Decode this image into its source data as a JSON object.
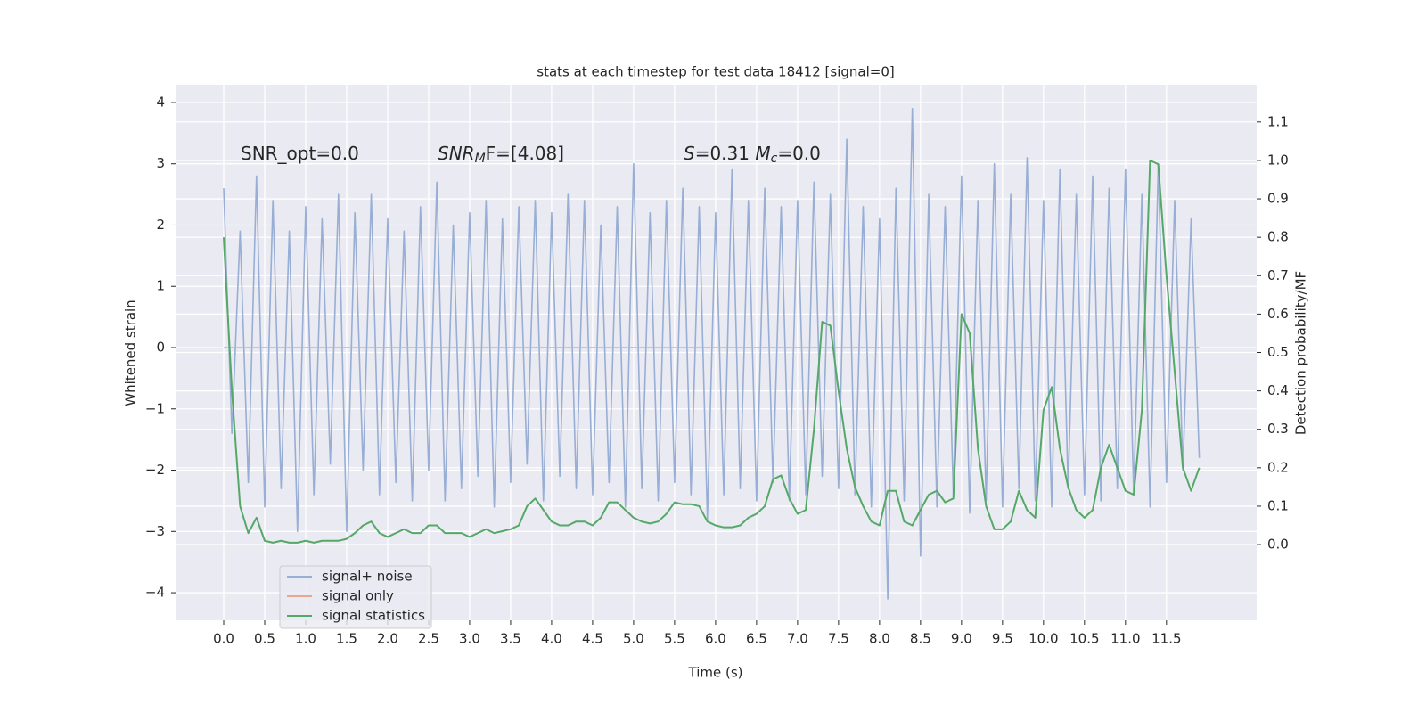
{
  "chart_data": {
    "type": "line",
    "title": "stats at each timestep for test data 18412 [signal=0]",
    "xlabel": "Time (s)",
    "ylabel": "Whitened strain",
    "y2label": "Detection probability/MF",
    "annotations": [
      [
        {
          "text": "SNR_opt=0.0"
        }
      ],
      [
        {
          "text": "SNR",
          "italic": true
        },
        {
          "text": "M",
          "italic": true,
          "sub": true
        },
        {
          "text": "F=[4.08]"
        }
      ],
      [
        {
          "text": "S",
          "italic": true
        },
        {
          "text": "=0.31   "
        },
        {
          "text": "M",
          "italic": true
        },
        {
          "text": "c",
          "italic": true,
          "sub": true
        },
        {
          "text": "=0.0"
        }
      ]
    ],
    "x": [
      0.0,
      0.1,
      0.2,
      0.3,
      0.4,
      0.5,
      0.6,
      0.7,
      0.8,
      0.9,
      1.0,
      1.1,
      1.2,
      1.3,
      1.4,
      1.5,
      1.6,
      1.7,
      1.8,
      1.9,
      2.0,
      2.1,
      2.2,
      2.3,
      2.4,
      2.5,
      2.6,
      2.7,
      2.8,
      2.9,
      3.0,
      3.1,
      3.2,
      3.3,
      3.4,
      3.5,
      3.6,
      3.7,
      3.8,
      3.9,
      4.0,
      4.1,
      4.2,
      4.3,
      4.4,
      4.5,
      4.6,
      4.7,
      4.8,
      4.9,
      5.0,
      5.1,
      5.2,
      5.3,
      5.4,
      5.5,
      5.6,
      5.7,
      5.8,
      5.9,
      6.0,
      6.1,
      6.2,
      6.3,
      6.4,
      6.5,
      6.6,
      6.7,
      6.8,
      6.9,
      7.0,
      7.1,
      7.2,
      7.3,
      7.4,
      7.5,
      7.6,
      7.7,
      7.8,
      7.9,
      8.0,
      8.1,
      8.2,
      8.3,
      8.4,
      8.5,
      8.6,
      8.7,
      8.8,
      8.9,
      9.0,
      9.1,
      9.2,
      9.3,
      9.4,
      9.5,
      9.6,
      9.7,
      9.8,
      9.9,
      10.0,
      10.1,
      10.2,
      10.3,
      10.4,
      10.5,
      10.6,
      10.7,
      10.8,
      10.9,
      11.0,
      11.1,
      11.2,
      11.3,
      11.4,
      11.5,
      11.6,
      11.7,
      11.8,
      11.9
    ],
    "series": [
      {
        "name": "signal+ noise",
        "color": "#98aed4",
        "values": [
          2.6,
          -1.4,
          1.9,
          -2.2,
          2.8,
          -2.6,
          2.4,
          -2.3,
          1.9,
          -3.0,
          2.3,
          -2.4,
          2.1,
          -1.9,
          2.5,
          -3.0,
          2.2,
          -2.0,
          2.5,
          -2.4,
          2.1,
          -2.2,
          1.9,
          -2.5,
          2.3,
          -2.0,
          2.7,
          -2.5,
          2.0,
          -2.3,
          2.2,
          -2.1,
          2.4,
          -2.6,
          2.1,
          -2.2,
          2.3,
          -1.9,
          2.4,
          -2.5,
          2.2,
          -2.1,
          2.5,
          -2.3,
          2.4,
          -2.4,
          2.0,
          -2.2,
          2.3,
          -2.6,
          3.0,
          -2.3,
          2.2,
          -2.5,
          2.4,
          -2.2,
          2.6,
          -2.4,
          2.3,
          -2.8,
          2.2,
          -2.4,
          2.9,
          -2.3,
          2.4,
          -2.5,
          2.6,
          -2.2,
          2.3,
          -2.5,
          2.4,
          -2.4,
          2.7,
          -2.1,
          2.5,
          -2.3,
          3.4,
          -2.4,
          2.3,
          -2.6,
          2.1,
          -4.1,
          2.6,
          -2.5,
          3.9,
          -3.4,
          2.5,
          -2.6,
          2.3,
          -2.4,
          2.8,
          -2.7,
          2.4,
          -2.5,
          3.0,
          -2.6,
          2.5,
          -2.3,
          3.1,
          -2.5,
          2.4,
          -2.6,
          2.9,
          -2.3,
          2.5,
          -2.4,
          2.8,
          -2.5,
          2.6,
          -2.3,
          2.9,
          -2.4,
          2.5,
          -2.6,
          3.0,
          -2.2,
          2.4,
          -2.0,
          2.1,
          -1.8
        ]
      },
      {
        "name": "signal only",
        "color": "#e8a88c",
        "values": [
          0,
          0,
          0,
          0,
          0,
          0,
          0,
          0,
          0,
          0,
          0,
          0,
          0,
          0,
          0,
          0,
          0,
          0,
          0,
          0,
          0,
          0,
          0,
          0,
          0,
          0,
          0,
          0,
          0,
          0,
          0,
          0,
          0,
          0,
          0,
          0,
          0,
          0,
          0,
          0,
          0,
          0,
          0,
          0,
          0,
          0,
          0,
          0,
          0,
          0,
          0,
          0,
          0,
          0,
          0,
          0,
          0,
          0,
          0,
          0,
          0,
          0,
          0,
          0,
          0,
          0,
          0,
          0,
          0,
          0,
          0,
          0,
          0,
          0,
          0,
          0,
          0,
          0,
          0,
          0,
          0,
          0,
          0,
          0,
          0,
          0,
          0,
          0,
          0,
          0,
          0,
          0,
          0,
          0,
          0,
          0,
          0,
          0,
          0,
          0,
          0,
          0,
          0,
          0,
          0,
          0,
          0,
          0,
          0,
          0,
          0,
          0,
          0,
          0,
          0,
          0,
          0,
          0,
          0,
          0
        ]
      },
      {
        "name": "signal statistics",
        "color": "#55a868",
        "axis": "y2",
        "values": [
          0.8,
          0.4,
          0.1,
          0.03,
          0.07,
          0.01,
          0.005,
          0.01,
          0.005,
          0.005,
          0.01,
          0.005,
          0.01,
          0.01,
          0.01,
          0.015,
          0.03,
          0.05,
          0.06,
          0.03,
          0.02,
          0.03,
          0.04,
          0.03,
          0.03,
          0.05,
          0.05,
          0.03,
          0.03,
          0.03,
          0.02,
          0.03,
          0.04,
          0.03,
          0.035,
          0.04,
          0.05,
          0.1,
          0.12,
          0.09,
          0.06,
          0.05,
          0.05,
          0.06,
          0.06,
          0.05,
          0.07,
          0.11,
          0.11,
          0.09,
          0.07,
          0.06,
          0.055,
          0.06,
          0.08,
          0.11,
          0.105,
          0.105,
          0.1,
          0.06,
          0.05,
          0.045,
          0.045,
          0.05,
          0.07,
          0.08,
          0.1,
          0.17,
          0.18,
          0.12,
          0.08,
          0.09,
          0.3,
          0.58,
          0.57,
          0.4,
          0.25,
          0.15,
          0.1,
          0.06,
          0.05,
          0.14,
          0.14,
          0.06,
          0.05,
          0.09,
          0.13,
          0.14,
          0.11,
          0.12,
          0.6,
          0.55,
          0.25,
          0.1,
          0.04,
          0.04,
          0.06,
          0.14,
          0.09,
          0.07,
          0.35,
          0.41,
          0.25,
          0.15,
          0.09,
          0.07,
          0.09,
          0.2,
          0.26,
          0.2,
          0.14,
          0.13,
          0.35,
          1.0,
          0.99,
          0.7,
          0.45,
          0.2,
          0.14,
          0.2
        ]
      }
    ],
    "xlim": [
      -0.587,
      12.6
    ],
    "ylim": [
      -4.45,
      4.29
    ],
    "y2lim": [
      -0.197,
      1.197
    ],
    "xticks": [
      {
        "value": 0,
        "label": "0.0"
      },
      {
        "value": 0.5,
        "label": "0.5"
      },
      {
        "value": 1,
        "label": "1.0"
      },
      {
        "value": 1.5,
        "label": "1.5"
      },
      {
        "value": 2,
        "label": "2.0"
      },
      {
        "value": 2.5,
        "label": "2.5"
      },
      {
        "value": 3,
        "label": "3.0"
      },
      {
        "value": 3.5,
        "label": "3.5"
      },
      {
        "value": 4,
        "label": "4.0"
      },
      {
        "value": 4.5,
        "label": "4.5"
      },
      {
        "value": 5,
        "label": "5.0"
      },
      {
        "value": 5.5,
        "label": "5.5"
      },
      {
        "value": 6,
        "label": "6.0"
      },
      {
        "value": 6.5,
        "label": "6.5"
      },
      {
        "value": 7,
        "label": "7.0"
      },
      {
        "value": 7.5,
        "label": "7.5"
      },
      {
        "value": 8,
        "label": "8.0"
      },
      {
        "value": 8.5,
        "label": "8.5"
      },
      {
        "value": 9,
        "label": "9.0"
      },
      {
        "value": 9.5,
        "label": "9.5"
      },
      {
        "value": 10,
        "label": "10.0"
      },
      {
        "value": 10.5,
        "label": "10.5"
      },
      {
        "value": 11,
        "label": "11.0"
      },
      {
        "value": 11.5,
        "label": "11.5"
      }
    ],
    "yticks": [
      {
        "value": -4,
        "label": "−4"
      },
      {
        "value": -3,
        "label": "−3"
      },
      {
        "value": -2,
        "label": "−2"
      },
      {
        "value": -1,
        "label": "−1"
      },
      0,
      1,
      2,
      3,
      4
    ],
    "y2ticks": [
      {
        "value": 0,
        "label": "0.0"
      },
      {
        "value": 0.1,
        "label": "0.1"
      },
      {
        "value": 0.2,
        "label": "0.2"
      },
      {
        "value": 0.3,
        "label": "0.3"
      },
      {
        "value": 0.4,
        "label": "0.4"
      },
      {
        "value": 0.5,
        "label": "0.5"
      },
      {
        "value": 0.6,
        "label": "0.6"
      },
      {
        "value": 0.7,
        "label": "0.7"
      },
      {
        "value": 0.8,
        "label": "0.8"
      },
      {
        "value": 0.9,
        "label": "0.9"
      },
      {
        "value": 1,
        "label": "1.0"
      },
      {
        "value": 1.1,
        "label": "1.1"
      }
    ],
    "grid": true,
    "legend": "lower left"
  }
}
